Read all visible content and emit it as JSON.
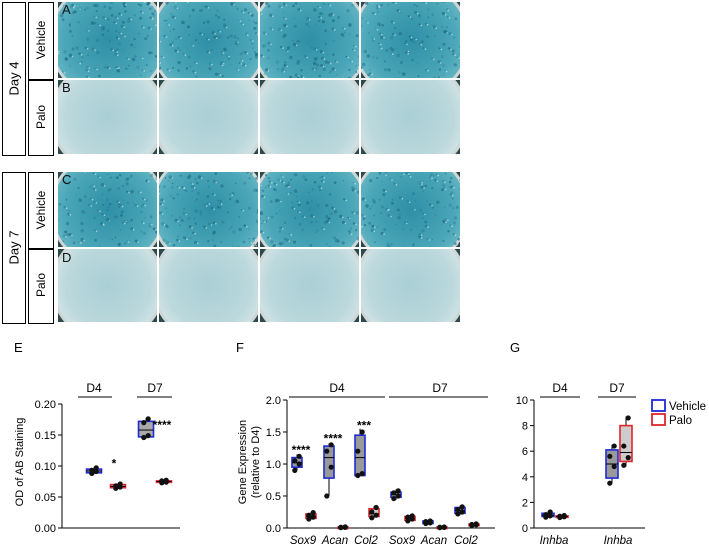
{
  "image_panels": {
    "groups": [
      {
        "day_label": "Day 4",
        "rows": [
          {
            "letter": "A",
            "treatment": "Vehicle",
            "stain": "strong"
          },
          {
            "letter": "B",
            "treatment": "Palo",
            "stain": "faint"
          }
        ]
      },
      {
        "day_label": "Day 7",
        "rows": [
          {
            "letter": "C",
            "treatment": "Vehicle",
            "stain": "strong"
          },
          {
            "letter": "D",
            "treatment": "Palo",
            "stain": "faint"
          }
        ]
      }
    ],
    "colors": {
      "strong_stain": "#4aa6b8",
      "faint_stain": "#bcd8dc",
      "well_bg": "#2c4a4e"
    }
  },
  "legend": {
    "items": [
      {
        "label": "Vehicle",
        "color": "#1f2bd6"
      },
      {
        "label": "Palo",
        "color": "#e0262b"
      }
    ]
  },
  "chart_data": [
    {
      "panel": "E",
      "type": "box",
      "ylabel": "OD of AB Staining",
      "ylim": [
        0,
        0.2
      ],
      "yticks": [
        "0.00",
        "0.05",
        "0.10",
        "0.15",
        "0.20"
      ],
      "groups": [
        "D4",
        "D7"
      ],
      "boxes": [
        {
          "group": "D4",
          "series": "Vehicle",
          "min": 0.087,
          "q1": 0.089,
          "median": 0.092,
          "q3": 0.095,
          "max": 0.098,
          "points": [
            0.088,
            0.091,
            0.093,
            0.097
          ]
        },
        {
          "group": "D4",
          "series": "Palo",
          "min": 0.063,
          "q1": 0.065,
          "median": 0.067,
          "q3": 0.07,
          "max": 0.072,
          "points": [
            0.064,
            0.066,
            0.068,
            0.071
          ]
        },
        {
          "group": "D7",
          "series": "Vehicle",
          "min": 0.144,
          "q1": 0.147,
          "median": 0.158,
          "q3": 0.172,
          "max": 0.177,
          "points": [
            0.146,
            0.149,
            0.17,
            0.176
          ]
        },
        {
          "group": "D7",
          "series": "Palo",
          "min": 0.073,
          "q1": 0.074,
          "median": 0.075,
          "q3": 0.076,
          "max": 0.077,
          "points": [
            0.073,
            0.074,
            0.076,
            0.077
          ]
        }
      ],
      "significance": [
        {
          "label": "*",
          "group": "D4",
          "y": 0.104
        },
        {
          "label": "****",
          "group": "D7",
          "y": 0.166
        }
      ]
    },
    {
      "panel": "F",
      "type": "box",
      "ylabel": "Gene Expression",
      "ylabel2": "(relative to D4)",
      "ylim": [
        0,
        2.0
      ],
      "yticks": [
        "0.0",
        "0.5",
        "1.0",
        "1.5",
        "2.0"
      ],
      "groups": [
        "D4",
        "D7"
      ],
      "categories": [
        "Sox9",
        "Acan",
        "Col2",
        "Sox9",
        "Acan",
        "Col2"
      ],
      "boxes": [
        {
          "cat": 0,
          "series": "Vehicle",
          "min": 0.9,
          "q1": 0.95,
          "median": 1.02,
          "q3": 1.1,
          "max": 1.15,
          "points": [
            0.9,
            1.0,
            1.05,
            1.12
          ],
          "fill": "#999999"
        },
        {
          "cat": 0,
          "series": "Palo",
          "min": 0.13,
          "q1": 0.15,
          "median": 0.18,
          "q3": 0.22,
          "max": 0.25,
          "points": [
            0.14,
            0.17,
            0.2,
            0.24
          ],
          "fill": "#cccccc"
        },
        {
          "cat": 1,
          "series": "Vehicle",
          "min": 0.5,
          "q1": 0.78,
          "median": 1.1,
          "q3": 1.28,
          "max": 1.32,
          "points": [
            0.5,
            0.95,
            1.2,
            1.3
          ],
          "fill": "#999999"
        },
        {
          "cat": 1,
          "series": "Palo",
          "min": 0.0,
          "q1": 0.005,
          "median": 0.01,
          "q3": 0.015,
          "max": 0.02,
          "points": [
            0.005,
            0.01,
            0.012,
            0.018
          ],
          "fill": "#cccccc"
        },
        {
          "cat": 2,
          "series": "Vehicle",
          "min": 0.82,
          "q1": 0.82,
          "median": 1.1,
          "q3": 1.45,
          "max": 1.55,
          "points": [
            0.82,
            0.85,
            1.2,
            1.5
          ],
          "fill": "#999999"
        },
        {
          "cat": 2,
          "series": "Palo",
          "min": 0.15,
          "q1": 0.18,
          "median": 0.22,
          "q3": 0.3,
          "max": 0.34,
          "points": [
            0.16,
            0.2,
            0.25,
            0.32
          ],
          "fill": "#cccccc"
        },
        {
          "cat": 3,
          "series": "Vehicle",
          "min": 0.44,
          "q1": 0.48,
          "median": 0.52,
          "q3": 0.56,
          "max": 0.6,
          "points": [
            0.46,
            0.5,
            0.55,
            0.58
          ],
          "fill": "#999999"
        },
        {
          "cat": 3,
          "series": "Palo",
          "min": 0.1,
          "q1": 0.12,
          "median": 0.15,
          "q3": 0.18,
          "max": 0.2,
          "points": [
            0.11,
            0.14,
            0.17,
            0.19
          ],
          "fill": "#cccccc"
        },
        {
          "cat": 4,
          "series": "Vehicle",
          "min": 0.06,
          "q1": 0.07,
          "median": 0.09,
          "q3": 0.11,
          "max": 0.12,
          "points": [
            0.07,
            0.08,
            0.1,
            0.11
          ],
          "fill": "#999999"
        },
        {
          "cat": 4,
          "series": "Palo",
          "min": 0.0,
          "q1": 0.005,
          "median": 0.01,
          "q3": 0.015,
          "max": 0.02,
          "points": [
            0.005,
            0.01,
            0.012,
            0.016
          ],
          "fill": "#cccccc"
        },
        {
          "cat": 5,
          "series": "Vehicle",
          "min": 0.2,
          "q1": 0.23,
          "median": 0.27,
          "q3": 0.32,
          "max": 0.35,
          "points": [
            0.22,
            0.25,
            0.29,
            0.33
          ],
          "fill": "#999999"
        },
        {
          "cat": 5,
          "series": "Palo",
          "min": 0.03,
          "q1": 0.04,
          "median": 0.05,
          "q3": 0.06,
          "max": 0.07,
          "points": [
            0.04,
            0.05,
            0.055,
            0.065
          ],
          "fill": "#cccccc"
        }
      ],
      "significance": [
        {
          "label": "****",
          "cat": 0,
          "y": 1.22
        },
        {
          "label": "****",
          "cat": 1,
          "y": 1.4
        },
        {
          "label": "***",
          "cat": 2,
          "y": 1.6
        }
      ]
    },
    {
      "panel": "G",
      "type": "box",
      "ylabel": "",
      "ylim": [
        0,
        10
      ],
      "yticks": [
        "0",
        "2",
        "4",
        "6",
        "8",
        "10"
      ],
      "groups": [
        "D4",
        "D7"
      ],
      "categories": [
        "Inhba",
        "Inhba"
      ],
      "boxes": [
        {
          "cat": 0,
          "series": "Vehicle",
          "min": 0.8,
          "q1": 0.9,
          "median": 1.0,
          "q3": 1.15,
          "max": 1.3,
          "points": [
            0.85,
            0.95,
            1.05,
            1.25
          ],
          "fill": "#999999"
        },
        {
          "cat": 0,
          "series": "Palo",
          "min": 0.8,
          "q1": 0.85,
          "median": 0.9,
          "q3": 0.95,
          "max": 1.0,
          "points": [
            0.82,
            0.88,
            0.92,
            0.98
          ],
          "fill": "#cccccc"
        },
        {
          "cat": 1,
          "series": "Vehicle",
          "min": 3.5,
          "q1": 3.9,
          "median": 5.0,
          "q3": 6.1,
          "max": 6.5,
          "points": [
            3.5,
            4.8,
            5.6,
            6.4
          ],
          "fill": "#999999"
        },
        {
          "cat": 1,
          "series": "Palo",
          "min": 4.8,
          "q1": 5.2,
          "median": 5.9,
          "q3": 8.0,
          "max": 8.7,
          "points": [
            4.9,
            5.5,
            6.4,
            8.6
          ],
          "fill": "#cccccc"
        }
      ]
    }
  ]
}
